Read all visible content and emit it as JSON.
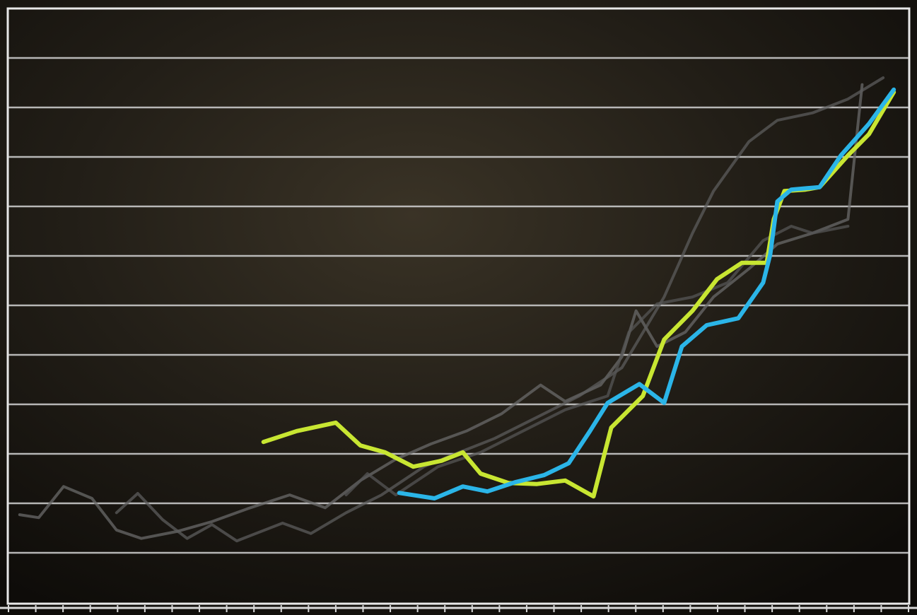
{
  "chart_data": {
    "type": "line",
    "xlim": [
      0,
      33
    ],
    "ylim": [
      0,
      12
    ],
    "xticks": [
      0,
      1,
      2,
      3,
      4,
      5,
      6,
      7,
      8,
      9,
      10,
      11,
      12,
      13,
      14,
      15,
      16,
      17,
      18,
      19,
      20,
      21,
      22,
      23,
      24,
      25,
      26,
      27,
      28,
      29,
      30,
      31,
      32,
      33
    ],
    "yticks": [
      1,
      2,
      3,
      4,
      5,
      6,
      7,
      8,
      9,
      10,
      11
    ],
    "grid": true,
    "series": [
      {
        "color": "#6a6a6a",
        "x": [
          0.41,
          1.11,
          2.02,
          3.06,
          3.96,
          4.87,
          6.17,
          7.46,
          8.76,
          10.31,
          11.61,
          12.9,
          14.2,
          15.49,
          16.79,
          18.08,
          19.51,
          20.41,
          21.71,
          22.49,
          23.01,
          23.78,
          24.82,
          25.85,
          27.15,
          28.19,
          29.48,
          30.78,
          31.3
        ],
        "values": [
          1.77,
          1.71,
          2.34,
          2.1,
          1.46,
          1.29,
          1.43,
          1.63,
          1.89,
          2.17,
          1.91,
          2.46,
          2.89,
          3.2,
          3.46,
          3.81,
          4.39,
          4.06,
          4.39,
          4.96,
          5.89,
          5.17,
          5.46,
          6.17,
          6.74,
          7.24,
          7.46,
          7.74,
          10.46
        ]
      },
      {
        "color": "#5c5c5c",
        "x": [
          3.96,
          4.74,
          5.65,
          6.55,
          7.46,
          8.37,
          10.05,
          11.09,
          12.38,
          13.68,
          15.23,
          16.53,
          17.82,
          19.38,
          20.93,
          22.49,
          24.04,
          25.08,
          25.85,
          27.15,
          28.19,
          29.48,
          30.78,
          32.07
        ],
        "values": [
          1.81,
          2.2,
          1.67,
          1.29,
          1.57,
          1.24,
          1.6,
          1.39,
          1.81,
          2.17,
          2.74,
          3.03,
          3.31,
          3.74,
          4.17,
          4.74,
          6.17,
          7.46,
          8.31,
          9.31,
          9.74,
          9.89,
          10.17,
          10.6
        ]
      },
      {
        "color": "#565656",
        "x": [
          12.38,
          13.16,
          14.2,
          15.75,
          17.31,
          18.86,
          20.41,
          21.97,
          22.75,
          23.78,
          25.08,
          26.37,
          27.67,
          28.7,
          29.48,
          30.78
        ],
        "values": [
          2.17,
          2.6,
          2.17,
          2.74,
          3.03,
          3.46,
          3.89,
          4.17,
          5.46,
          6.03,
          6.17,
          6.46,
          7.31,
          7.6,
          7.46,
          7.6
        ]
      },
      {
        "color": "#c8e632",
        "x": [
          9.35,
          10.57,
          12.0,
          12.9,
          13.81,
          14.84,
          15.88,
          16.66,
          17.31,
          18.34,
          19.38,
          20.41,
          21.45,
          22.1,
          23.26,
          24.04,
          25.08,
          25.98,
          26.89,
          27.8,
          28.06,
          28.45,
          29.22,
          29.74,
          30.78,
          31.55,
          32.46
        ],
        "values": [
          3.24,
          3.46,
          3.63,
          3.17,
          3.03,
          2.74,
          2.86,
          3.03,
          2.6,
          2.41,
          2.39,
          2.46,
          2.14,
          3.53,
          4.17,
          5.31,
          5.89,
          6.53,
          6.86,
          6.86,
          7.74,
          8.31,
          8.34,
          8.39,
          9.03,
          9.46,
          10.31
        ]
      },
      {
        "color": "#2bb5e8",
        "x": [
          14.33,
          15.62,
          16.66,
          17.56,
          18.6,
          19.64,
          20.54,
          21.32,
          21.97,
          23.13,
          24.04,
          24.69,
          25.6,
          26.76,
          27.67,
          27.93,
          28.19,
          28.7,
          29.74,
          30.52,
          31.55,
          32.46
        ],
        "values": [
          2.21,
          2.1,
          2.34,
          2.24,
          2.43,
          2.57,
          2.81,
          3.46,
          4.03,
          4.41,
          4.03,
          5.17,
          5.6,
          5.74,
          6.46,
          7.03,
          8.1,
          8.34,
          8.39,
          9.03,
          9.67,
          10.36
        ]
      }
    ]
  }
}
